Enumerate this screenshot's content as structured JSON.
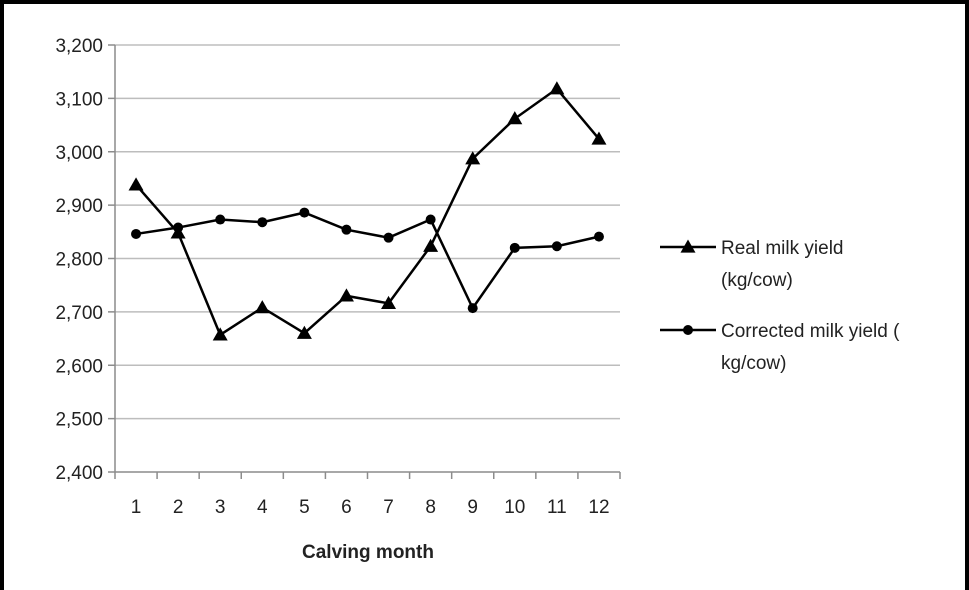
{
  "chart_data": {
    "type": "line",
    "title": "",
    "xlabel": "Calving month",
    "ylabel": "",
    "categories": [
      "1",
      "2",
      "3",
      "4",
      "5",
      "6",
      "7",
      "8",
      "9",
      "10",
      "11",
      "12"
    ],
    "ylim": [
      2400,
      3200
    ],
    "yticks": [
      2400,
      2500,
      2600,
      2700,
      2800,
      2900,
      3000,
      3100,
      3200
    ],
    "ytick_labels": [
      "2,400",
      "2,500",
      "2,600",
      "2,700",
      "2,800",
      "2,900",
      "3,000",
      "3,100",
      "3,200"
    ],
    "grid": "horizontal",
    "legend_position": "right",
    "series": [
      {
        "name_lines": [
          "Real milk yield",
          "(kg/cow)"
        ],
        "marker": "triangle",
        "values": [
          2938,
          2848,
          2657,
          2708,
          2660,
          2730,
          2716,
          2823,
          2987,
          3062,
          3118,
          3024
        ]
      },
      {
        "name_lines": [
          "Corrected milk yield (",
          "kg/cow)"
        ],
        "marker": "circle",
        "values": [
          2846,
          2858,
          2873,
          2868,
          2886,
          2854,
          2839,
          2873,
          2707,
          2820,
          2823,
          2841
        ]
      }
    ],
    "colors": {
      "line": "#000000",
      "grid": "#bdbdbd",
      "axis": "#8c8c8c"
    }
  }
}
